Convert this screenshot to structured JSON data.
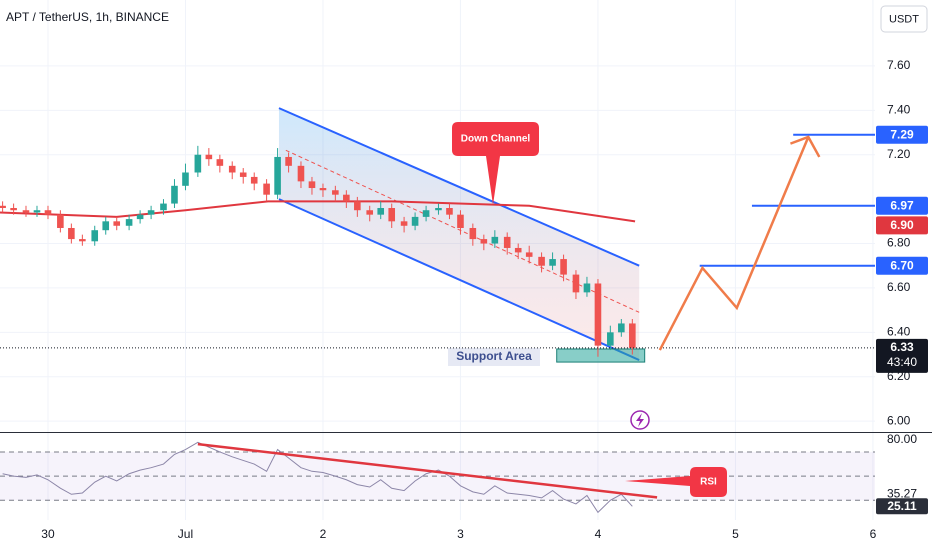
{
  "chart_data": {
    "type": "candlestick",
    "title": "APT / TetherUS, 1h, BINANCE",
    "currency": "USDT",
    "xlim": [
      -0.349,
      6.015
    ],
    "xticks": [
      {
        "value": 0,
        "label": "30"
      },
      {
        "value": 1,
        "label": "Jul"
      },
      2,
      3,
      4,
      5,
      6
    ],
    "ylim": [
      5.951,
      7.897
    ],
    "yticks": [
      {
        "value": 7.6,
        "label": "7.60"
      },
      {
        "value": 7.4,
        "label": "7.40"
      },
      {
        "value": 7.2,
        "label": "7.20"
      },
      {
        "value": 6.8,
        "label": "6.80"
      },
      {
        "value": 6.6,
        "label": "6.60"
      },
      {
        "value": 6.4,
        "label": "6.40"
      },
      {
        "value": 6.2,
        "label": "6.20"
      },
      {
        "value": 6.0,
        "label": "6.00"
      }
    ],
    "grid": true,
    "up_color": "#26a69a",
    "down_color": "#ef5350",
    "x": [
      -0.33,
      -0.25,
      -0.16,
      -0.08,
      0,
      0.09,
      0.17,
      0.25,
      0.34,
      0.42,
      0.5,
      0.59,
      0.67,
      0.75,
      0.84,
      0.92,
      1,
      1.09,
      1.17,
      1.25,
      1.34,
      1.42,
      1.5,
      1.59,
      1.67,
      1.75,
      1.84,
      1.92,
      2,
      2.09,
      2.17,
      2.25,
      2.34,
      2.42,
      2.5,
      2.59,
      2.67,
      2.75,
      2.84,
      2.92,
      3,
      3.09,
      3.17,
      3.25,
      3.34,
      3.42,
      3.5,
      3.59,
      3.67,
      3.75,
      3.84,
      3.92,
      4,
      4.09,
      4.17,
      4.25
    ],
    "ohlc": [
      [
        6.97,
        6.99,
        6.94,
        6.96
      ],
      [
        6.96,
        6.98,
        6.93,
        6.95
      ],
      [
        6.95,
        6.97,
        6.92,
        6.94
      ],
      [
        6.94,
        6.97,
        6.92,
        6.95
      ],
      [
        6.95,
        6.97,
        6.91,
        6.93
      ],
      [
        6.93,
        6.95,
        6.85,
        6.87
      ],
      [
        6.87,
        6.89,
        6.8,
        6.82
      ],
      [
        6.82,
        6.84,
        6.79,
        6.81
      ],
      [
        6.81,
        6.88,
        6.79,
        6.86
      ],
      [
        6.86,
        6.92,
        6.84,
        6.9
      ],
      [
        6.9,
        6.92,
        6.86,
        6.88
      ],
      [
        6.88,
        6.93,
        6.86,
        6.91
      ],
      [
        6.91,
        6.95,
        6.89,
        6.93
      ],
      [
        6.93,
        6.97,
        6.91,
        6.95
      ],
      [
        6.95,
        7.0,
        6.93,
        6.98
      ],
      [
        6.98,
        7.09,
        6.96,
        7.06
      ],
      [
        7.06,
        7.16,
        7.04,
        7.12
      ],
      [
        7.12,
        7.24,
        7.1,
        7.2
      ],
      [
        7.2,
        7.23,
        7.15,
        7.18
      ],
      [
        7.18,
        7.2,
        7.12,
        7.15
      ],
      [
        7.15,
        7.17,
        7.09,
        7.12
      ],
      [
        7.12,
        7.14,
        7.07,
        7.1
      ],
      [
        7.1,
        7.12,
        7.04,
        7.07
      ],
      [
        7.07,
        7.09,
        6.99,
        7.02
      ],
      [
        7.02,
        7.23,
        7.0,
        7.19
      ],
      [
        7.19,
        7.21,
        7.12,
        7.15
      ],
      [
        7.15,
        7.17,
        7.05,
        7.08
      ],
      [
        7.08,
        7.1,
        7.02,
        7.05
      ],
      [
        7.05,
        7.07,
        7.01,
        7.04
      ],
      [
        7.04,
        7.06,
        6.99,
        7.02
      ],
      [
        7.02,
        7.04,
        6.96,
        6.99
      ],
      [
        6.99,
        7.01,
        6.92,
        6.95
      ],
      [
        6.95,
        6.97,
        6.9,
        6.93
      ],
      [
        6.93,
        6.99,
        6.91,
        6.96
      ],
      [
        6.96,
        6.98,
        6.87,
        6.9
      ],
      [
        6.9,
        6.92,
        6.85,
        6.88
      ],
      [
        6.88,
        6.94,
        6.86,
        6.92
      ],
      [
        6.92,
        6.97,
        6.9,
        6.95
      ],
      [
        6.95,
        6.98,
        6.93,
        6.96
      ],
      [
        6.96,
        6.98,
        6.91,
        6.93
      ],
      [
        6.93,
        6.95,
        6.84,
        6.87
      ],
      [
        6.87,
        6.89,
        6.79,
        6.82
      ],
      [
        6.82,
        6.84,
        6.77,
        6.8
      ],
      [
        6.8,
        6.86,
        6.78,
        6.83
      ],
      [
        6.83,
        6.85,
        6.75,
        6.78
      ],
      [
        6.78,
        6.8,
        6.73,
        6.76
      ],
      [
        6.76,
        6.79,
        6.71,
        6.74
      ],
      [
        6.74,
        6.76,
        6.67,
        6.7
      ],
      [
        6.7,
        6.76,
        6.68,
        6.73
      ],
      [
        6.73,
        6.75,
        6.63,
        6.66
      ],
      [
        6.66,
        6.68,
        6.55,
        6.58
      ],
      [
        6.58,
        6.65,
        6.56,
        6.62
      ],
      [
        6.62,
        6.64,
        6.29,
        6.34
      ],
      [
        6.34,
        6.43,
        6.32,
        6.4
      ],
      [
        6.4,
        6.46,
        6.38,
        6.44
      ],
      [
        6.44,
        6.46,
        6.3,
        6.33
      ]
    ],
    "ma": {
      "color": "#e0373f",
      "x": [
        -0.349,
        0.5,
        1.0,
        1.6,
        2.5,
        3.5,
        4.27
      ],
      "values": [
        6.94,
        6.92,
        6.95,
        6.99,
        6.99,
        6.97,
        6.9
      ],
      "badge": {
        "value": 6.9,
        "label": "6.90"
      }
    },
    "channel": {
      "color": "#2962ff",
      "upper": {
        "x": [
          1.68,
          4.3
        ],
        "values": [
          7.41,
          6.7
        ]
      },
      "lower": {
        "x": [
          1.68,
          4.3
        ],
        "values": [
          7.0,
          6.275
        ]
      },
      "mid": {
        "x": [
          1.73,
          4.3
        ],
        "values": [
          7.22,
          6.49
        ]
      }
    },
    "levels": [
      {
        "value": 7.29,
        "label": "7.29",
        "x0": 5.42
      },
      {
        "value": 6.97,
        "label": "6.97",
        "x0": 5.12
      },
      {
        "value": 6.7,
        "label": "6.70",
        "x0": 4.74
      }
    ],
    "level_color": "#2962ff",
    "projection": {
      "color": "#f07c4a",
      "x": [
        4.45,
        4.76,
        5.01,
        5.53
      ],
      "values": [
        6.32,
        6.69,
        6.51,
        7.28
      ],
      "head_x": [
        5.4,
        5.53,
        5.61
      ],
      "head_values": [
        7.25,
        7.28,
        7.19
      ]
    },
    "support": {
      "label": "Support Area",
      "x": [
        3.7,
        4.34
      ],
      "values": [
        6.325,
        6.266
      ]
    },
    "down_channel_label": "Down Channel",
    "last": {
      "value": 6.33,
      "countdown": "43:40"
    },
    "rsi": {
      "label": "RSI",
      "color": "#8c86a8",
      "ylim": [
        13.7,
        85.7
      ],
      "yticks": [
        {
          "value": 80,
          "label": "80.00"
        }
      ],
      "bands": [
        70,
        50,
        30
      ],
      "values": [
        52,
        50,
        49,
        51,
        47,
        40,
        35,
        36,
        45,
        50,
        46,
        52,
        55,
        57,
        60,
        68,
        72,
        78,
        74,
        70,
        66,
        63,
        60,
        54,
        72,
        65,
        57,
        54,
        53,
        50,
        47,
        43,
        41,
        47,
        40,
        38,
        46,
        52,
        55,
        50,
        42,
        37,
        35,
        42,
        36,
        35,
        34,
        32,
        38,
        31,
        27,
        34,
        20,
        30,
        35,
        25
      ],
      "trend": {
        "color": "#e0373f",
        "x": [
          1.09,
          4.43
        ],
        "values": [
          76.5,
          32.4
        ]
      },
      "badges": [
        {
          "value": 35.27,
          "color": "#ffffff"
        },
        {
          "value": 25.11,
          "color": "#2a2e39"
        }
      ]
    }
  }
}
